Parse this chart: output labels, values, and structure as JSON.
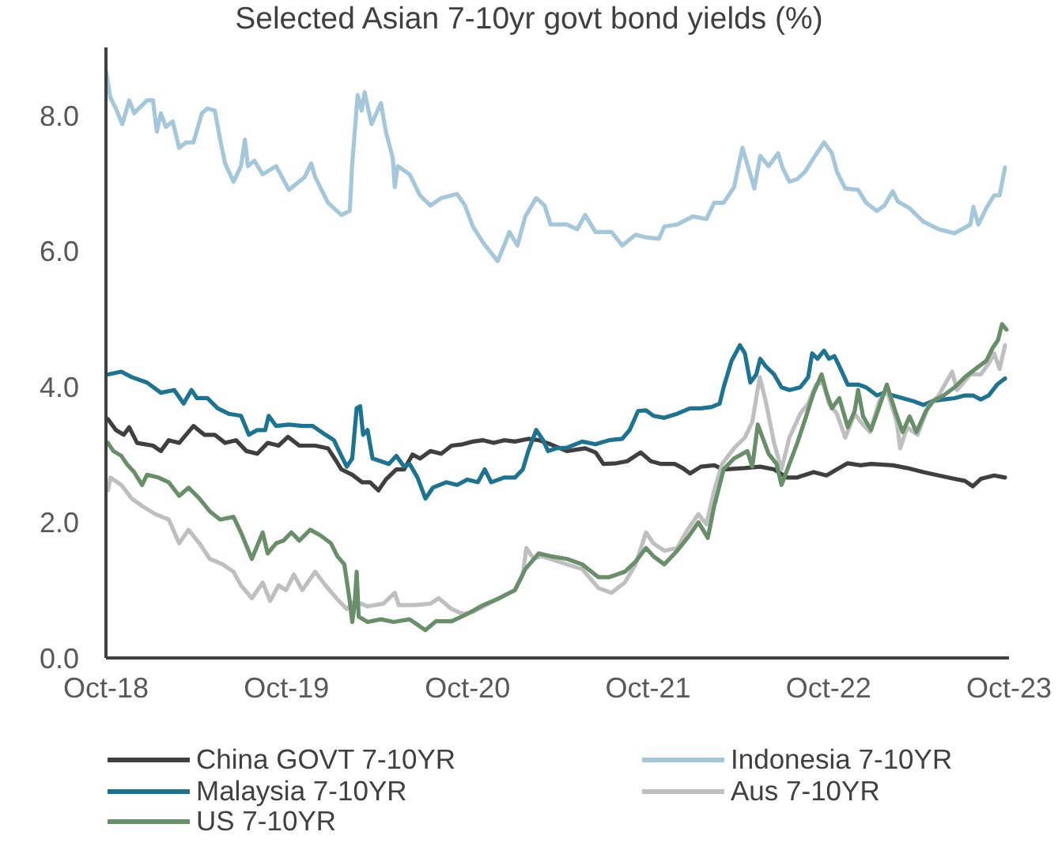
{
  "chart_data": {
    "type": "line",
    "title": "Selected Asian 7-10yr govt bond yields (%)",
    "xlim": [
      "2018-10-01",
      "2023-10-01"
    ],
    "xticks": [
      {
        "value": "2018-10-01",
        "label": "Oct-18"
      },
      {
        "value": "2019-10-01",
        "label": "Oct-19"
      },
      {
        "value": "2020-10-01",
        "label": "Oct-20"
      },
      {
        "value": "2021-10-01",
        "label": "Oct-21"
      },
      {
        "value": "2022-10-01",
        "label": "Oct-22"
      },
      {
        "value": "2023-10-01",
        "label": "Oct-23"
      }
    ],
    "ylim": [
      0,
      9
    ],
    "yticks": [
      {
        "value": 0,
        "label": "0.0"
      },
      {
        "value": 2,
        "label": "2.0"
      },
      {
        "value": 4,
        "label": "4.0"
      },
      {
        "value": 6,
        "label": "6.0"
      },
      {
        "value": 8,
        "label": "8.0"
      }
    ],
    "legend": "bottom",
    "series": [
      {
        "name": "China GOVT 7-10YR",
        "color": "#3f3f3f",
        "x": [
          "2018-10-05",
          "2018-10-21",
          "2018-11-06",
          "2018-11-17",
          "2018-12-03",
          "2019-01-04",
          "2019-01-20",
          "2019-02-05",
          "2019-02-26",
          "2019-03-27",
          "2019-04-18",
          "2019-05-09",
          "2019-05-30",
          "2019-06-21",
          "2019-07-12",
          "2019-08-03",
          "2019-08-24",
          "2019-09-15",
          "2019-10-04",
          "2019-10-27",
          "2019-11-28",
          "2019-12-24",
          "2020-01-10",
          "2020-01-20",
          "2020-02-11",
          "2020-03-02",
          "2020-03-18",
          "2020-04-04",
          "2020-04-19",
          "2020-05-10",
          "2020-05-26",
          "2020-06-12",
          "2020-06-27",
          "2020-07-18",
          "2020-08-09",
          "2020-08-30",
          "2020-09-21",
          "2020-10-12",
          "2020-11-02",
          "2020-11-23",
          "2020-12-14",
          "2021-01-05",
          "2021-02-01",
          "2021-02-22",
          "2021-03-18",
          "2021-04-20",
          "2021-05-27",
          "2021-06-17",
          "2021-07-03",
          "2021-07-29",
          "2021-08-20",
          "2021-09-16",
          "2021-10-07",
          "2021-10-28",
          "2021-11-24",
          "2021-12-10",
          "2021-12-25",
          "2022-01-16",
          "2022-02-12",
          "2022-03-03",
          "2022-04-15",
          "2022-05-16",
          "2022-06-13",
          "2022-07-09",
          "2022-07-30",
          "2022-09-01",
          "2022-09-27",
          "2022-10-18",
          "2022-11-09",
          "2022-12-05",
          "2022-12-26",
          "2023-02-08",
          "2023-03-09",
          "2023-04-11",
          "2023-05-12",
          "2023-06-13",
          "2023-07-04",
          "2023-07-20",
          "2023-08-05",
          "2023-09-01",
          "2023-09-23"
        ],
        "values": [
          3.52,
          3.36,
          3.29,
          3.4,
          3.17,
          3.13,
          3.05,
          3.21,
          3.17,
          3.42,
          3.29,
          3.29,
          3.17,
          3.21,
          3.05,
          3.01,
          3.17,
          3.13,
          3.26,
          3.13,
          3.13,
          3.09,
          2.9,
          2.78,
          2.7,
          2.59,
          2.59,
          2.47,
          2.63,
          2.78,
          2.78,
          3.0,
          2.94,
          3.05,
          3.01,
          3.13,
          3.15,
          3.19,
          3.21,
          3.17,
          3.21,
          3.19,
          3.23,
          3.21,
          3.15,
          3.05,
          3.09,
          3.03,
          2.86,
          2.87,
          2.9,
          3.03,
          2.9,
          2.86,
          2.86,
          2.8,
          2.72,
          2.82,
          2.84,
          2.78,
          2.8,
          2.82,
          2.78,
          2.66,
          2.66,
          2.74,
          2.69,
          2.78,
          2.87,
          2.84,
          2.86,
          2.84,
          2.8,
          2.74,
          2.69,
          2.64,
          2.61,
          2.53,
          2.64,
          2.69,
          2.66
        ]
      },
      {
        "name": "Indonesia 7-10YR",
        "color": "#a4c8da",
        "x": [
          "2018-10-01",
          "2018-10-10",
          "2018-10-21",
          "2018-11-03",
          "2018-11-17",
          "2018-11-27",
          "2018-12-23",
          "2019-01-04",
          "2019-01-12",
          "2019-01-20",
          "2019-01-30",
          "2019-02-13",
          "2019-02-26",
          "2019-03-12",
          "2019-03-27",
          "2019-04-13",
          "2019-04-24",
          "2019-05-09",
          "2019-05-20",
          "2019-05-30",
          "2019-06-16",
          "2019-07-01",
          "2019-07-09",
          "2019-07-15",
          "2019-07-28",
          "2019-08-14",
          "2019-09-10",
          "2019-10-06",
          "2019-11-07",
          "2019-11-20",
          "2019-11-28",
          "2019-12-24",
          "2020-01-20",
          "2020-02-06",
          "2020-02-11",
          "2020-02-22",
          "2020-03-01",
          "2020-03-07",
          "2020-03-21",
          "2020-04-09",
          "2020-04-19",
          "2020-05-03",
          "2020-05-07",
          "2020-05-13",
          "2020-06-06",
          "2020-06-27",
          "2020-07-18",
          "2020-08-09",
          "2020-09-10",
          "2020-09-26",
          "2020-10-12",
          "2020-11-02",
          "2020-12-01",
          "2020-12-14",
          "2020-12-25",
          "2021-01-10",
          "2021-01-26",
          "2021-02-17",
          "2021-03-06",
          "2021-03-18",
          "2021-04-20",
          "2021-05-11",
          "2021-05-27",
          "2021-06-17",
          "2021-07-19",
          "2021-08-10",
          "2021-09-06",
          "2021-09-27",
          "2021-10-23",
          "2021-11-03",
          "2021-11-29",
          "2021-12-31",
          "2022-01-27",
          "2022-02-12",
          "2022-03-03",
          "2022-03-24",
          "2022-04-10",
          "2022-04-26",
          "2022-05-04",
          "2022-05-16",
          "2022-06-02",
          "2022-06-21",
          "2022-06-30",
          "2022-07-14",
          "2022-07-30",
          "2022-08-15",
          "2022-09-01",
          "2022-09-22",
          "2022-10-08",
          "2022-10-18",
          "2022-11-04",
          "2022-11-30",
          "2022-12-16",
          "2023-01-07",
          "2023-01-22",
          "2023-02-08",
          "2023-02-18",
          "2023-03-14",
          "2023-04-11",
          "2023-05-12",
          "2023-06-13",
          "2023-07-15",
          "2023-07-21",
          "2023-07-31",
          "2023-08-16",
          "2023-09-01",
          "2023-09-12",
          "2023-09-23"
        ],
        "values": [
          8.65,
          8.26,
          8.1,
          7.87,
          8.22,
          8.03,
          8.22,
          8.22,
          7.76,
          8.03,
          7.83,
          7.91,
          7.52,
          7.6,
          7.6,
          8.03,
          8.1,
          8.07,
          7.64,
          7.29,
          7.02,
          7.25,
          7.64,
          7.25,
          7.33,
          7.13,
          7.25,
          6.9,
          7.09,
          7.29,
          7.09,
          6.71,
          6.53,
          6.59,
          7.29,
          8.3,
          8.07,
          8.34,
          7.87,
          8.18,
          7.76,
          7.37,
          6.94,
          7.25,
          7.13,
          6.82,
          6.67,
          6.78,
          6.84,
          6.67,
          6.36,
          6.12,
          5.85,
          6.08,
          6.28,
          6.08,
          6.51,
          6.78,
          6.67,
          6.39,
          6.39,
          6.32,
          6.53,
          6.28,
          6.28,
          6.08,
          6.24,
          6.2,
          6.18,
          6.36,
          6.39,
          6.51,
          6.47,
          6.71,
          6.71,
          6.94,
          7.52,
          7.13,
          6.92,
          7.4,
          7.25,
          7.44,
          7.23,
          7.02,
          7.06,
          7.17,
          7.37,
          7.6,
          7.44,
          7.17,
          6.92,
          6.9,
          6.71,
          6.59,
          6.67,
          6.88,
          6.73,
          6.63,
          6.43,
          6.32,
          6.26,
          6.39,
          6.65,
          6.39,
          6.63,
          6.82,
          6.82,
          7.23
        ]
      },
      {
        "name": "Malaysia 7-10YR",
        "color": "#1d7491",
        "x": [
          "2018-10-05",
          "2018-11-01",
          "2018-11-22",
          "2018-12-23",
          "2019-01-20",
          "2019-02-16",
          "2019-03-07",
          "2019-03-23",
          "2019-04-03",
          "2019-04-24",
          "2019-05-15",
          "2019-06-06",
          "2019-07-01",
          "2019-07-17",
          "2019-08-03",
          "2019-08-19",
          "2019-08-26",
          "2019-09-10",
          "2019-10-06",
          "2019-11-02",
          "2019-11-23",
          "2019-12-19",
          "2020-01-05",
          "2020-01-20",
          "2020-01-31",
          "2020-02-11",
          "2020-02-20",
          "2020-02-27",
          "2020-03-04",
          "2020-03-13",
          "2020-03-23",
          "2020-04-09",
          "2020-04-25",
          "2020-05-10",
          "2020-05-26",
          "2020-06-06",
          "2020-06-22",
          "2020-07-08",
          "2020-07-23",
          "2020-08-19",
          "2020-09-10",
          "2020-10-01",
          "2020-10-22",
          "2020-11-05",
          "2020-11-18",
          "2020-12-14",
          "2021-01-05",
          "2021-01-21",
          "2021-02-01",
          "2021-02-17",
          "2021-03-03",
          "2021-03-13",
          "2021-03-29",
          "2021-04-20",
          "2021-05-21",
          "2021-06-17",
          "2021-07-14",
          "2021-08-10",
          "2021-08-25",
          "2021-09-11",
          "2021-09-27",
          "2021-10-12",
          "2021-11-03",
          "2021-11-29",
          "2021-12-25",
          "2022-01-16",
          "2022-02-07",
          "2022-02-23",
          "2022-03-03",
          "2022-03-19",
          "2022-04-05",
          "2022-04-15",
          "2022-04-26",
          "2022-05-08",
          "2022-05-16",
          "2022-05-27",
          "2022-06-13",
          "2022-06-28",
          "2022-07-14",
          "2022-08-05",
          "2022-08-21",
          "2022-08-29",
          "2022-09-09",
          "2022-09-22",
          "2022-10-02",
          "2022-10-13",
          "2022-10-23",
          "2022-11-09",
          "2022-11-30",
          "2022-12-16",
          "2023-01-07",
          "2023-01-22",
          "2023-02-08",
          "2023-02-28",
          "2023-03-20",
          "2023-04-11",
          "2023-05-01",
          "2023-05-22",
          "2023-06-13",
          "2023-07-04",
          "2023-07-20",
          "2023-08-05",
          "2023-08-21",
          "2023-09-07",
          "2023-09-23"
        ],
        "values": [
          4.18,
          4.22,
          4.14,
          4.06,
          3.91,
          3.95,
          3.75,
          3.95,
          3.83,
          3.83,
          3.68,
          3.6,
          3.57,
          3.29,
          3.36,
          3.36,
          3.57,
          3.42,
          3.44,
          3.42,
          3.42,
          3.29,
          3.21,
          2.98,
          2.82,
          2.94,
          3.68,
          3.71,
          3.29,
          3.36,
          2.94,
          2.9,
          2.86,
          2.98,
          2.82,
          2.86,
          2.66,
          2.35,
          2.51,
          2.59,
          2.55,
          2.63,
          2.59,
          2.78,
          2.59,
          2.66,
          2.66,
          2.78,
          3.05,
          3.36,
          3.21,
          3.05,
          3.09,
          3.1,
          3.19,
          3.15,
          3.21,
          3.23,
          3.36,
          3.64,
          3.65,
          3.57,
          3.54,
          3.6,
          3.68,
          3.68,
          3.7,
          3.75,
          3.99,
          4.38,
          4.61,
          4.49,
          4.06,
          4.18,
          4.41,
          4.3,
          4.18,
          3.99,
          3.95,
          3.99,
          4.14,
          4.49,
          4.41,
          4.53,
          4.41,
          4.45,
          4.3,
          4.03,
          4.03,
          3.99,
          3.87,
          3.91,
          3.87,
          3.83,
          3.79,
          3.73,
          3.79,
          3.81,
          3.83,
          3.87,
          3.87,
          3.81,
          3.87,
          4.03,
          4.12
        ]
      },
      {
        "name": "Aus 7-10YR",
        "color": "#bfbfbf",
        "x": [
          "2018-10-05",
          "2018-10-10",
          "2018-11-01",
          "2018-11-22",
          "2018-12-13",
          "2019-01-09",
          "2019-02-05",
          "2019-02-26",
          "2019-03-17",
          "2019-04-08",
          "2019-04-29",
          "2019-05-25",
          "2019-06-16",
          "2019-07-01",
          "2019-07-23",
          "2019-08-14",
          "2019-08-29",
          "2019-09-15",
          "2019-09-30",
          "2019-10-16",
          "2019-11-02",
          "2019-11-28",
          "2019-12-19",
          "2020-01-10",
          "2020-01-31",
          "2020-02-16",
          "2020-03-13",
          "2020-04-14",
          "2020-05-07",
          "2020-05-15",
          "2020-06-17",
          "2020-07-18",
          "2020-08-04",
          "2020-08-30",
          "2020-09-21",
          "2020-10-12",
          "2020-11-13",
          "2020-12-14",
          "2021-01-05",
          "2021-01-21",
          "2021-01-28",
          "2021-02-12",
          "2021-02-27",
          "2021-03-18",
          "2021-04-20",
          "2021-05-21",
          "2021-06-23",
          "2021-07-19",
          "2021-08-15",
          "2021-09-06",
          "2021-09-27",
          "2021-10-12",
          "2021-11-03",
          "2021-11-29",
          "2021-12-20",
          "2022-01-11",
          "2022-01-27",
          "2022-02-12",
          "2022-02-28",
          "2022-03-24",
          "2022-04-15",
          "2022-04-30",
          "2022-05-15",
          "2022-05-27",
          "2022-06-13",
          "2022-06-28",
          "2022-07-14",
          "2022-08-05",
          "2022-08-21",
          "2022-09-06",
          "2022-09-20",
          "2022-10-02",
          "2022-10-18",
          "2022-11-04",
          "2022-11-23",
          "2022-12-05",
          "2022-12-24",
          "2023-01-12",
          "2023-01-27",
          "2023-02-16",
          "2023-02-23",
          "2023-03-09",
          "2023-03-30",
          "2023-04-21",
          "2023-05-12",
          "2023-06-08",
          "2023-06-18",
          "2023-07-15",
          "2023-08-05",
          "2023-08-21",
          "2023-09-01",
          "2023-09-12",
          "2023-09-23"
        ],
        "values": [
          2.47,
          2.66,
          2.55,
          2.35,
          2.24,
          2.12,
          2.04,
          1.69,
          1.89,
          1.69,
          1.46,
          1.38,
          1.27,
          1.07,
          0.88,
          1.11,
          0.84,
          1.07,
          1.0,
          1.23,
          1.0,
          1.27,
          1.07,
          0.88,
          0.72,
          0.84,
          0.76,
          0.8,
          0.96,
          0.78,
          0.78,
          0.8,
          0.88,
          0.72,
          0.65,
          0.68,
          0.8,
          0.92,
          1.0,
          1.23,
          1.62,
          1.46,
          1.5,
          1.46,
          1.38,
          1.31,
          1.03,
          0.96,
          1.11,
          1.38,
          1.85,
          1.69,
          1.58,
          1.62,
          1.89,
          2.12,
          1.97,
          2.47,
          2.86,
          3.09,
          3.25,
          3.48,
          4.14,
          3.79,
          3.17,
          2.78,
          3.25,
          3.6,
          3.75,
          4.03,
          4.06,
          3.75,
          3.6,
          3.25,
          3.6,
          3.48,
          3.33,
          3.79,
          3.95,
          3.48,
          3.09,
          3.4,
          3.29,
          3.71,
          3.87,
          4.22,
          3.95,
          4.18,
          4.18,
          4.34,
          4.49,
          4.26,
          4.61
        ]
      },
      {
        "name": "US 7-10YR",
        "color": "#698e6a",
        "x": [
          "2018-10-05",
          "2018-10-16",
          "2018-11-01",
          "2018-11-12",
          "2018-11-27",
          "2018-12-13",
          "2018-12-23",
          "2019-01-15",
          "2019-02-05",
          "2019-02-26",
          "2019-03-17",
          "2019-04-08",
          "2019-04-29",
          "2019-05-20",
          "2019-06-16",
          "2019-07-01",
          "2019-07-23",
          "2019-08-14",
          "2019-08-24",
          "2019-09-10",
          "2019-09-25",
          "2019-10-11",
          "2019-10-27",
          "2019-11-18",
          "2019-12-08",
          "2019-12-30",
          "2020-01-12",
          "2020-01-26",
          "2020-02-06",
          "2020-02-11",
          "2020-02-16",
          "2020-02-20",
          "2020-02-24",
          "2020-03-13",
          "2020-04-09",
          "2020-05-05",
          "2020-06-06",
          "2020-07-08",
          "2020-07-29",
          "2020-08-30",
          "2020-10-01",
          "2020-11-02",
          "2020-12-04",
          "2021-01-05",
          "2021-01-26",
          "2021-02-22",
          "2021-03-18",
          "2021-04-20",
          "2021-05-21",
          "2021-06-23",
          "2021-07-14",
          "2021-08-15",
          "2021-09-06",
          "2021-09-27",
          "2021-10-12",
          "2021-11-03",
          "2021-11-29",
          "2021-12-20",
          "2022-01-11",
          "2022-01-30",
          "2022-02-12",
          "2022-03-03",
          "2022-03-24",
          "2022-04-20",
          "2022-04-30",
          "2022-05-11",
          "2022-06-02",
          "2022-06-18",
          "2022-06-28",
          "2022-07-14",
          "2022-07-30",
          "2022-08-15",
          "2022-09-01",
          "2022-09-17",
          "2022-09-27",
          "2022-10-08",
          "2022-10-23",
          "2022-11-09",
          "2022-11-23",
          "2022-11-30",
          "2022-12-10",
          "2022-12-26",
          "2023-01-12",
          "2023-01-27",
          "2023-02-13",
          "2023-02-28",
          "2023-03-14",
          "2023-03-28",
          "2023-04-16",
          "2023-05-01",
          "2023-05-22",
          "2023-06-13",
          "2023-07-04",
          "2023-07-25",
          "2023-08-16",
          "2023-08-29",
          "2023-09-09",
          "2023-09-17",
          "2023-09-26"
        ],
        "values": [
          3.17,
          3.05,
          2.98,
          2.86,
          2.74,
          2.55,
          2.7,
          2.66,
          2.59,
          2.39,
          2.51,
          2.35,
          2.16,
          2.04,
          2.08,
          1.85,
          1.46,
          1.85,
          1.54,
          1.69,
          1.73,
          1.85,
          1.73,
          1.89,
          1.81,
          1.69,
          1.5,
          1.38,
          0.84,
          0.53,
          0.8,
          1.27,
          0.61,
          0.53,
          0.57,
          0.53,
          0.57,
          0.41,
          0.54,
          0.54,
          0.65,
          0.78,
          0.88,
          1.0,
          1.31,
          1.54,
          1.5,
          1.46,
          1.38,
          1.19,
          1.19,
          1.27,
          1.42,
          1.62,
          1.5,
          1.38,
          1.58,
          1.77,
          2.0,
          1.77,
          2.24,
          2.78,
          2.94,
          3.05,
          2.82,
          3.44,
          3.01,
          2.86,
          2.55,
          2.86,
          3.17,
          3.52,
          3.91,
          4.18,
          3.91,
          3.68,
          3.83,
          3.4,
          3.64,
          3.95,
          3.56,
          3.36,
          3.71,
          4.03,
          3.64,
          3.33,
          3.56,
          3.33,
          3.64,
          3.79,
          3.87,
          3.99,
          4.14,
          4.26,
          4.38,
          4.57,
          4.69,
          4.92,
          4.84
        ]
      }
    ]
  }
}
